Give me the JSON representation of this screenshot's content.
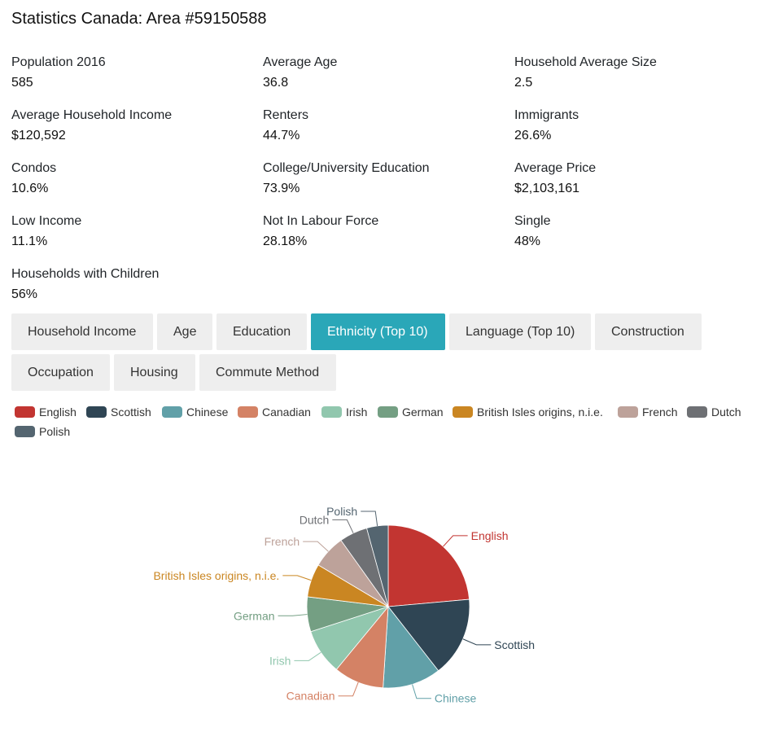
{
  "page": {
    "title": "Statistics Canada: Area #59150588"
  },
  "stats": [
    {
      "label": "Population 2016",
      "value": "585"
    },
    {
      "label": "Average Age",
      "value": "36.8"
    },
    {
      "label": "Household Average Size",
      "value": "2.5"
    },
    {
      "label": "Average Household Income",
      "value": "$120,592"
    },
    {
      "label": "Renters",
      "value": "44.7%"
    },
    {
      "label": "Immigrants",
      "value": "26.6%"
    },
    {
      "label": "Condos",
      "value": "10.6%"
    },
    {
      "label": "College/University Education",
      "value": "73.9%"
    },
    {
      "label": "Average Price",
      "value": "$2,103,161"
    },
    {
      "label": "Low Income",
      "value": "11.1%"
    },
    {
      "label": "Not In Labour Force",
      "value": "28.18%"
    },
    {
      "label": "Single",
      "value": "48%"
    },
    {
      "label": "Households with Children",
      "value": "56%"
    }
  ],
  "tabs": [
    {
      "label": "Household Income",
      "active": false
    },
    {
      "label": "Age",
      "active": false
    },
    {
      "label": "Education",
      "active": false
    },
    {
      "label": "Ethnicity (Top 10)",
      "active": true
    },
    {
      "label": "Language (Top 10)",
      "active": false
    },
    {
      "label": "Construction",
      "active": false
    },
    {
      "label": "Occupation",
      "active": false
    },
    {
      "label": "Housing",
      "active": false
    },
    {
      "label": "Commute Method",
      "active": false
    }
  ],
  "chart_data": {
    "type": "pie",
    "title": "",
    "legend_position": "top-left",
    "categories": [
      "English",
      "Scottish",
      "Chinese",
      "Canadian",
      "Irish",
      "German",
      "British Isles origins, n.i.e.",
      "French",
      "Dutch",
      "Polish"
    ],
    "values": [
      23.2,
      15.6,
      11.4,
      9.8,
      8.9,
      6.8,
      6.5,
      6.5,
      5.5,
      4.2
    ],
    "colors": [
      "#c23531",
      "#2f4554",
      "#61a0a8",
      "#d48265",
      "#91c7ae",
      "#749f83",
      "#ca8622",
      "#bda29a",
      "#6e7074",
      "#546570"
    ]
  }
}
